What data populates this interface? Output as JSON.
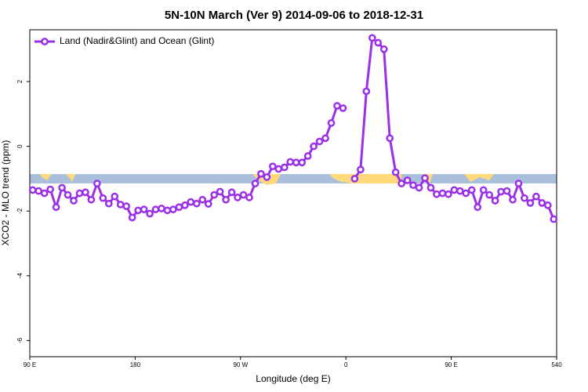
{
  "chart_data": {
    "type": "line",
    "title": "5N-10N March (Ver 9)   2014-09-06 to 2018-12-31",
    "xlabel": "Longitude (deg E)",
    "ylabel": "XCO2 - MLO trend (ppm)",
    "xlim": [
      90,
      540
    ],
    "ylim": [
      -6.5,
      3.6
    ],
    "xticks": [
      {
        "value": 90,
        "label": "90 E"
      },
      180,
      {
        "value": 270,
        "label": "90 W"
      },
      {
        "value": 360,
        "label": "0"
      },
      {
        "value": 450,
        "label": "90 E"
      },
      540
    ],
    "yticks": [
      -6,
      -4,
      -2,
      0,
      2
    ],
    "legend": "top-left",
    "x": [
      92.5,
      97.5,
      102.5,
      107.5,
      112.5,
      117.5,
      122.5,
      127.5,
      132.5,
      137.5,
      142.5,
      147.5,
      152.5,
      157.5,
      162.5,
      167.5,
      172.5,
      177.5,
      182.5,
      187.5,
      192.5,
      197.5,
      202.5,
      207.5,
      212.5,
      217.5,
      222.5,
      227.5,
      232.5,
      237.5,
      242.5,
      247.5,
      252.5,
      257.5,
      262.5,
      267.5,
      272.5,
      277.5,
      282.5,
      287.5,
      292.5,
      297.5,
      302.5,
      307.5,
      312.5,
      317.5,
      322.5,
      327.5,
      332.5,
      337.5,
      342.5,
      347.5,
      352.5,
      357.5,
      362.5,
      367.5,
      372.5,
      377.5,
      382.5,
      387.5,
      392.5,
      397.5,
      402.5,
      407.5,
      412.5,
      417.5,
      422.5,
      427.5,
      432.5,
      437.5,
      442.5,
      447.5,
      452.5,
      457.5,
      462.5,
      467.5,
      472.5,
      477.5,
      482.5,
      487.5,
      492.5,
      497.5,
      502.5,
      507.5,
      512.5,
      517.5,
      522.5,
      527.5,
      532.5,
      537.5
    ],
    "series": [
      {
        "name": "Land (Nadir&Glint) and Ocean (Glint)",
        "color": "#9b30e6",
        "values": [
          -1.35,
          -1.38,
          -1.45,
          -1.33,
          -1.88,
          -1.28,
          -1.5,
          -1.68,
          -1.45,
          -1.42,
          -1.65,
          -1.15,
          -1.6,
          -1.77,
          -1.55,
          -1.8,
          -1.85,
          -2.2,
          -1.98,
          -1.95,
          -2.08,
          -1.95,
          -1.92,
          -1.98,
          -1.95,
          -1.88,
          -1.82,
          -1.72,
          -1.77,
          -1.65,
          -1.78,
          -1.5,
          -1.4,
          -1.65,
          -1.42,
          -1.58,
          -1.5,
          -1.58,
          -1.15,
          -0.85,
          -0.95,
          -0.62,
          -0.7,
          -0.65,
          -0.48,
          -0.5,
          -0.5,
          -0.3,
          0.0,
          0.15,
          0.25,
          0.72,
          1.25,
          1.18,
          null,
          -1.0,
          -0.72,
          1.7,
          3.35,
          3.2,
          3.0,
          0.25,
          -0.8,
          -1.15,
          -1.05,
          -1.2,
          -1.28,
          -0.98,
          -1.28,
          -1.48,
          -1.45,
          -1.48,
          -1.35,
          -1.38,
          -1.45,
          -1.35,
          -1.88,
          -1.35,
          -1.5,
          -1.68,
          -1.4,
          -1.38,
          -1.65,
          -1.15,
          -1.6,
          -1.75,
          -1.55,
          -1.75,
          -1.82,
          -2.25
        ]
      }
    ]
  }
}
